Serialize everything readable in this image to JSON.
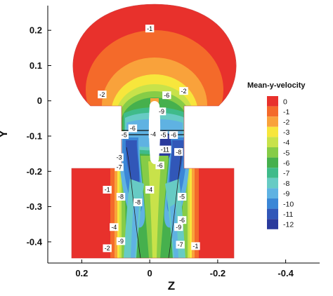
{
  "chart_data": {
    "type": "contour",
    "xlabel": "Z",
    "ylabel": "Y",
    "xlim": [
      0.3,
      -0.5
    ],
    "ylim": [
      -0.46,
      0.27
    ],
    "x_reversed": true,
    "x_ticks": [
      0.2,
      0,
      -0.2,
      -0.4
    ],
    "x_tick_labels": [
      "0.2",
      "0",
      "-0.2",
      "-0.4"
    ],
    "y_ticks": [
      0.2,
      0.1,
      0,
      -0.1,
      -0.2,
      -0.3,
      -0.4
    ],
    "y_tick_labels": [
      "0.2",
      "0.1",
      "0",
      "-0.1",
      "-0.2",
      "-0.3",
      "-0.4"
    ],
    "legend": {
      "title": "Mean-y-velocity",
      "position": "right",
      "levels": [
        0,
        -1,
        -2,
        -3,
        -4,
        -5,
        -6,
        -7,
        -8,
        -9,
        -10,
        -11,
        -12
      ],
      "labels": [
        "0",
        "-1",
        "-2",
        "-3",
        "-4",
        "-5",
        "-6",
        "-7",
        "-8",
        "-9",
        "-10",
        "-11",
        "-12"
      ],
      "colors": [
        "#e8312c",
        "#f46a2a",
        "#f9a23b",
        "#f7e63c",
        "#c8e24a",
        "#86cc47",
        "#46b04d",
        "#3fbb8a",
        "#67cbc4",
        "#5fb2e2",
        "#3b86d6",
        "#3157b8",
        "#2a3a9c"
      ]
    },
    "contour_labels": [
      {
        "z": 0.0,
        "y": 0.205,
        "text": "-1"
      },
      {
        "z": 0.14,
        "y": 0.018,
        "text": "-2"
      },
      {
        "z": -0.1,
        "y": 0.028,
        "text": "-2"
      },
      {
        "z": -0.05,
        "y": 0.016,
        "text": "-6"
      },
      {
        "z": -0.035,
        "y": -0.03,
        "text": "-9"
      },
      {
        "z": 0.05,
        "y": -0.078,
        "text": "-6"
      },
      {
        "z": 0.075,
        "y": -0.097,
        "text": "-5"
      },
      {
        "z": -0.01,
        "y": -0.095,
        "text": "-4"
      },
      {
        "z": -0.04,
        "y": -0.097,
        "text": "-5"
      },
      {
        "z": -0.07,
        "y": -0.097,
        "text": "-6"
      },
      {
        "z": -0.045,
        "y": -0.138,
        "text": "-11"
      },
      {
        "z": -0.085,
        "y": -0.145,
        "text": "-8"
      },
      {
        "z": 0.09,
        "y": -0.16,
        "text": "-3"
      },
      {
        "z": 0.09,
        "y": -0.188,
        "text": "-7"
      },
      {
        "z": -0.03,
        "y": -0.183,
        "text": "-6"
      },
      {
        "z": 0.125,
        "y": -0.252,
        "text": "-1"
      },
      {
        "z": 0.085,
        "y": -0.272,
        "text": "-8"
      },
      {
        "z": 0.0,
        "y": -0.252,
        "text": "-4"
      },
      {
        "z": 0.035,
        "y": -0.288,
        "text": "-8"
      },
      {
        "z": -0.095,
        "y": -0.272,
        "text": "-5"
      },
      {
        "z": -0.095,
        "y": -0.338,
        "text": "-6"
      },
      {
        "z": -0.085,
        "y": -0.358,
        "text": "-9"
      },
      {
        "z": 0.105,
        "y": -0.358,
        "text": "-4"
      },
      {
        "z": 0.085,
        "y": -0.398,
        "text": "-9"
      },
      {
        "z": -0.09,
        "y": -0.408,
        "text": "-7"
      },
      {
        "z": -0.135,
        "y": -0.412,
        "text": "-1"
      },
      {
        "z": 0.125,
        "y": -0.418,
        "text": "-2"
      }
    ]
  }
}
